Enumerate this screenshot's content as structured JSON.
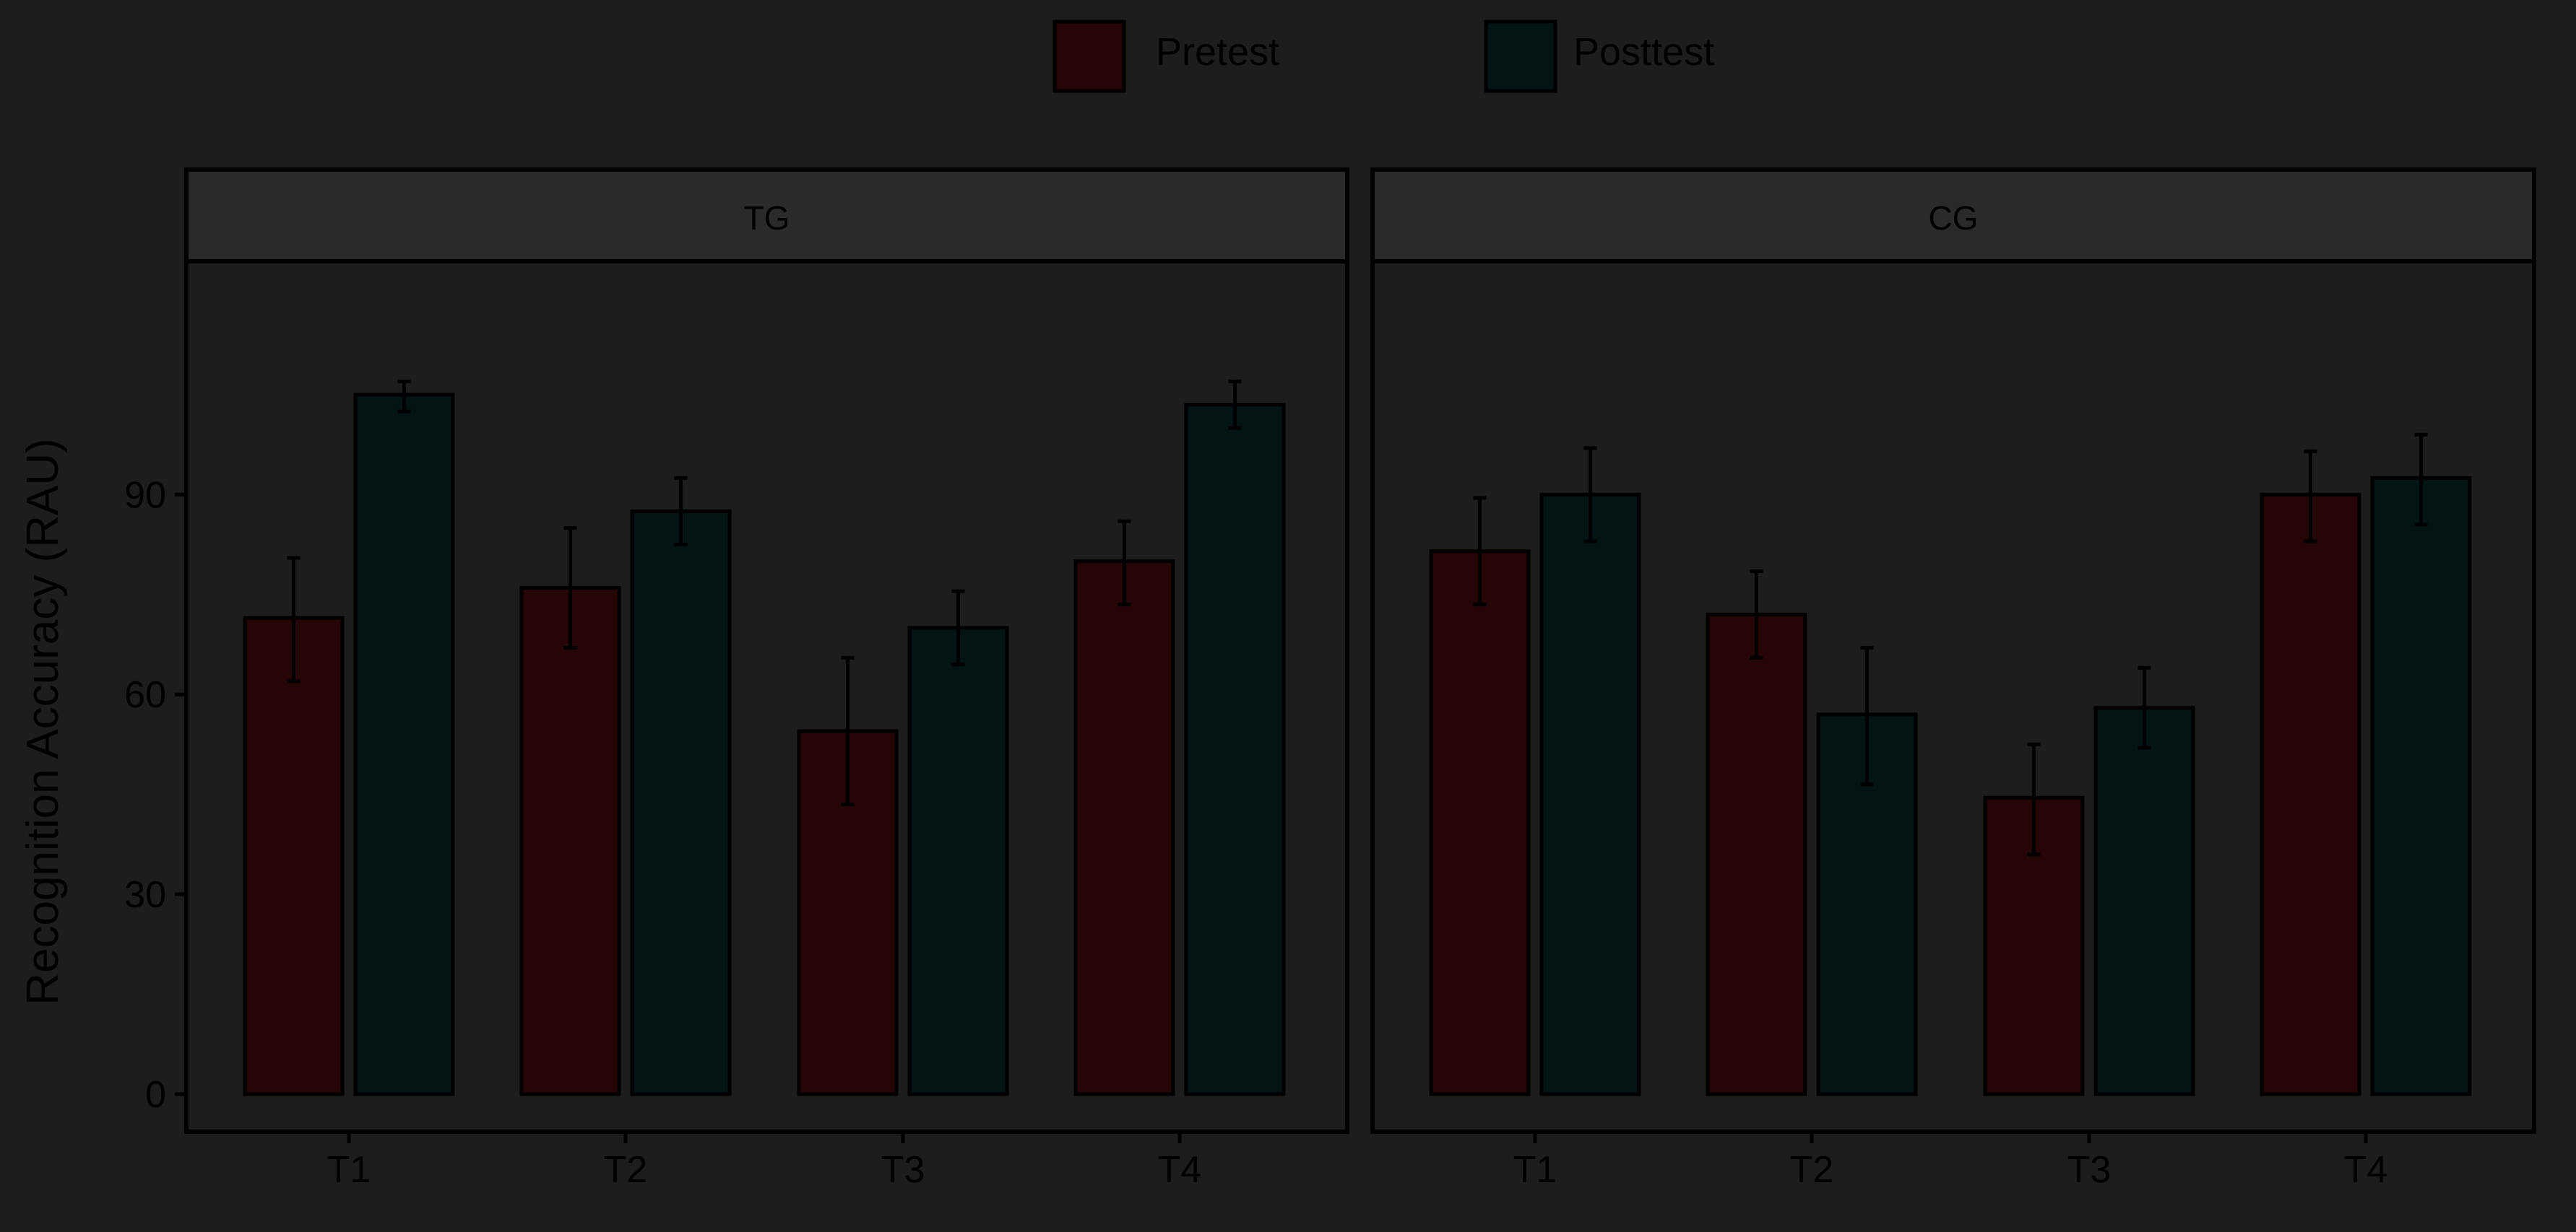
{
  "chart_data": {
    "type": "bar",
    "ylabel": "Recognition Accuracy (RAU)",
    "xlabel": "",
    "ylim": [
      -5,
      122
    ],
    "yticks": [
      0,
      30,
      60,
      90
    ],
    "grid": false,
    "legend_placement": "top-center",
    "colors": {
      "background": "#1d1d1d",
      "pretest": "#260506",
      "posttest": "#021414",
      "strip": "#2a2a2a",
      "axis_text": "#000000",
      "outline": "#000000"
    },
    "series": [
      {
        "name": "Pretest"
      },
      {
        "name": "Posttest"
      }
    ],
    "categories": [
      "T1",
      "T2",
      "T3",
      "T4"
    ],
    "facets": [
      {
        "label": "TG",
        "pretest": {
          "values": [
            71.5,
            76.0,
            54.5,
            80.0
          ],
          "errors": [
            [
              62.0,
              80.5
            ],
            [
              67.0,
              85.0
            ],
            [
              43.5,
              65.5
            ],
            [
              73.5,
              86.0
            ]
          ]
        },
        "posttest": {
          "values": [
            105.0,
            87.5,
            70.0,
            103.5
          ],
          "errors": [
            [
              102.5,
              107.0
            ],
            [
              82.5,
              92.5
            ],
            [
              64.5,
              75.5
            ],
            [
              100.0,
              107.0
            ]
          ]
        }
      },
      {
        "label": "CG",
        "pretest": {
          "values": [
            81.5,
            72.0,
            44.5,
            90.0
          ],
          "errors": [
            [
              73.5,
              89.5
            ],
            [
              65.5,
              78.5
            ],
            [
              36.0,
              52.5
            ],
            [
              83.0,
              96.5
            ]
          ]
        },
        "posttest": {
          "values": [
            90.0,
            57.0,
            58.0,
            92.5
          ],
          "errors": [
            [
              83.0,
              97.0
            ],
            [
              46.5,
              67.0
            ],
            [
              52.0,
              64.0
            ],
            [
              85.5,
              99.0
            ]
          ]
        }
      }
    ]
  }
}
